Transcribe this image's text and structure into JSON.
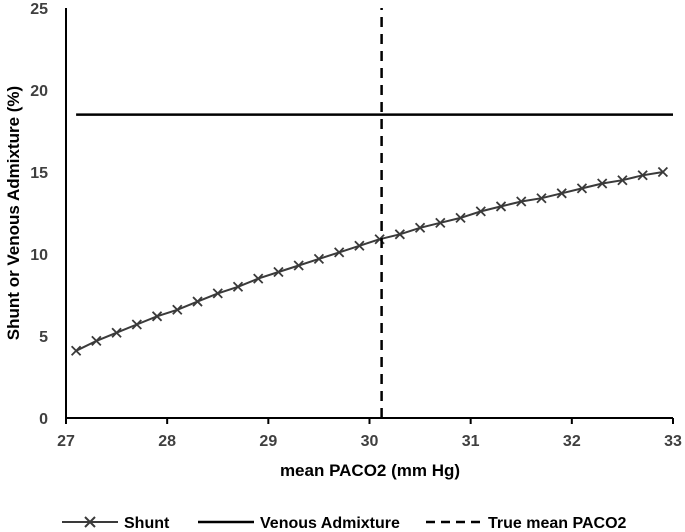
{
  "chart_data": {
    "type": "line",
    "title": "",
    "xlabel": "mean PACO2 (mm Hg)",
    "ylabel": "Shunt or Venous Admixture (%)",
    "xlim": [
      27,
      33
    ],
    "ylim": [
      0,
      25
    ],
    "xticks": [
      "27",
      "28",
      "29",
      "30",
      "31",
      "32",
      "33"
    ],
    "yticks": [
      "0",
      "5",
      "10",
      "15",
      "20",
      "25"
    ],
    "grid": false,
    "legend_position": "bottom",
    "series": [
      {
        "name": "Shunt",
        "style": "solid-with-x-markers",
        "color": "#3a3a3a",
        "x": [
          27.1,
          27.3,
          27.5,
          27.7,
          27.9,
          28.1,
          28.3,
          28.5,
          28.7,
          28.9,
          29.1,
          29.3,
          29.5,
          29.7,
          29.9,
          30.1,
          30.3,
          30.5,
          30.7,
          30.9,
          31.1,
          31.3,
          31.5,
          31.7,
          31.9,
          32.1,
          32.3,
          32.5,
          32.7,
          32.9
        ],
        "y": [
          4.1,
          4.7,
          5.2,
          5.7,
          6.2,
          6.6,
          7.1,
          7.6,
          8.0,
          8.5,
          8.9,
          9.3,
          9.7,
          10.1,
          10.5,
          10.9,
          11.2,
          11.6,
          11.9,
          12.2,
          12.6,
          12.9,
          13.2,
          13.4,
          13.7,
          14.0,
          14.3,
          14.5,
          14.8,
          15.0
        ]
      },
      {
        "name": "Venous Admixture",
        "style": "solid",
        "color": "#000000",
        "x": [
          27.1,
          33.0
        ],
        "y": [
          18.5,
          18.5
        ]
      },
      {
        "name": "True mean PACO2",
        "style": "dashed",
        "color": "#000000",
        "x": [
          30.12,
          30.12
        ],
        "y": [
          0,
          25
        ]
      }
    ]
  }
}
